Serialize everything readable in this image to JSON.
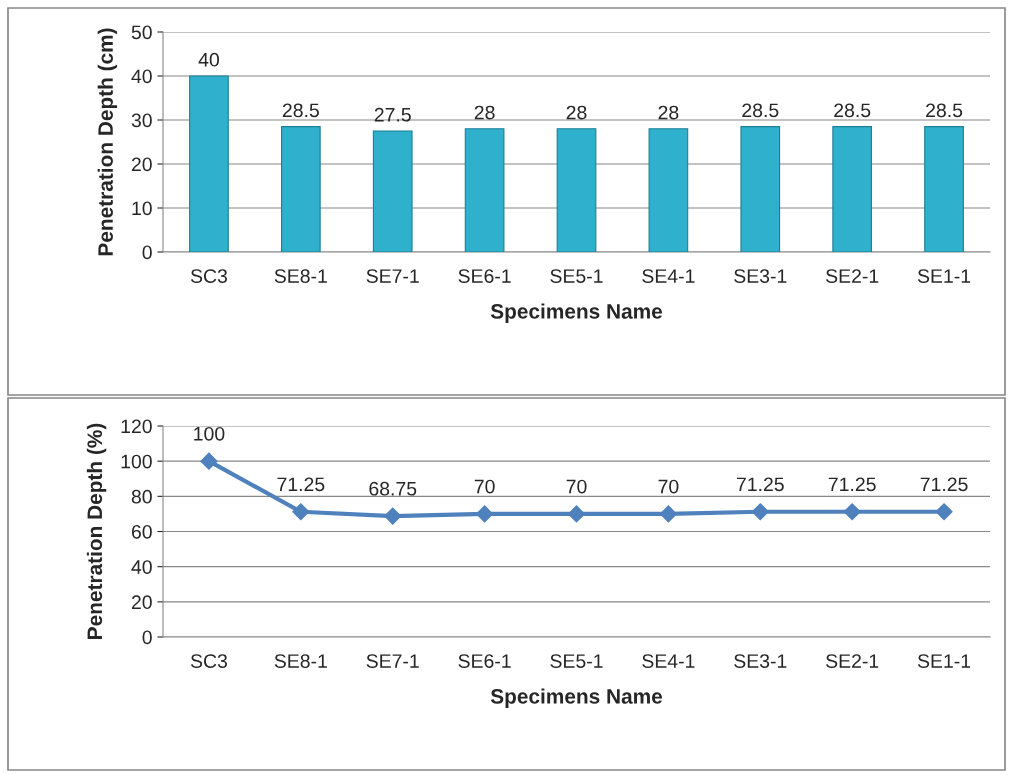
{
  "chart_data": [
    {
      "type": "bar",
      "categories": [
        "SC3",
        "SE8-1",
        "SE7-1",
        "SE6-1",
        "SE5-1",
        "SE4-1",
        "SE3-1",
        "SE2-1",
        "SE1-1"
      ],
      "xlabel": "Specimens Name",
      "ylabel": "Penetration Depth (cm)",
      "ylim": [
        0,
        50
      ],
      "yticks": [
        0,
        10,
        20,
        30,
        40,
        50
      ],
      "grid": "y",
      "data_labels": true,
      "series": [
        {
          "color": "#2fb0cc",
          "values": [
            40,
            28.5,
            27.5,
            28,
            28,
            28,
            28.5,
            28.5,
            28.5
          ]
        }
      ]
    },
    {
      "type": "line",
      "categories": [
        "SC3",
        "SE8-1",
        "SE7-1",
        "SE6-1",
        "SE5-1",
        "SE4-1",
        "SE3-1",
        "SE2-1",
        "SE1-1"
      ],
      "xlabel": "Specimens Name",
      "ylabel": "Penetration Depth (%)",
      "ylim": [
        0,
        120
      ],
      "yticks": [
        0,
        20,
        40,
        60,
        80,
        100,
        120
      ],
      "grid": "y",
      "data_labels": true,
      "marker": "diamond",
      "series": [
        {
          "color": "#4f81bd",
          "values": [
            100,
            71.25,
            68.75,
            70,
            70,
            70,
            71.25,
            71.25,
            71.25
          ]
        }
      ]
    }
  ]
}
